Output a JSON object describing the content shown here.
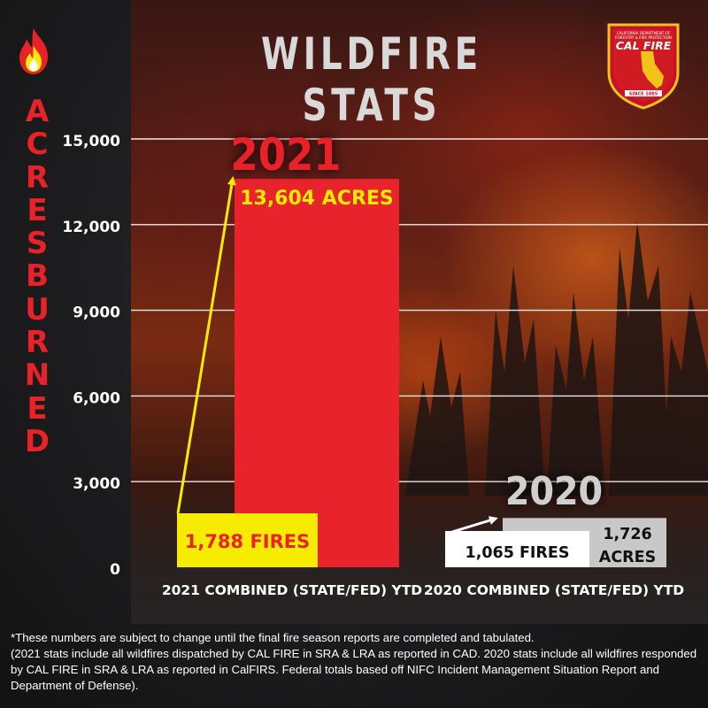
{
  "header": {
    "title": "WILDFIRE STATS",
    "y_axis_title": "ACRES BURNED"
  },
  "logo": {
    "line1": "CALIFORNIA DEPARTMENT OF",
    "line2": "FORESTRY & FIRE PROTECTION",
    "name": "CAL FIRE",
    "since": "SINCE 1885"
  },
  "colors": {
    "bar_2021": "#e9232b",
    "bar_2020": "#c8c8c8",
    "fires_box_2021": "#f6ec00",
    "fires_text_2021": "#e9232b",
    "acres_text_2021": "#f6ec00",
    "fires_box_2020": "#ffffff",
    "year_2021": "#e9232b",
    "year_2020": "#cfcfcf",
    "arrow_2021": "#f6ec00",
    "arrow_2020": "#ffffff"
  },
  "chart_data": {
    "type": "bar",
    "categories": [
      "2021 COMBINED (STATE/FED) YTD",
      "2020 COMBINED (STATE/FED) YTD"
    ],
    "values": [
      13604,
      1726
    ],
    "fires": [
      1788,
      1065
    ],
    "year_labels": [
      "2021",
      "2020"
    ],
    "acres_labels": [
      "13,604 ACRES",
      "1,726\nACRES"
    ],
    "fires_labels": [
      "1,788 FIRES",
      "1,065 FIRES"
    ],
    "ylabel": "ACRES BURNED",
    "ylim": [
      0,
      15000
    ],
    "yticks": [
      0,
      3000,
      6000,
      9000,
      12000,
      15000
    ],
    "ytick_labels": [
      "0",
      "3,000",
      "6,000",
      "9,000",
      "12,000",
      "15,000"
    ],
    "grid": true
  },
  "footnotes": [
    "*These numbers are subject to change until the final fire season reports are completed and tabulated.",
    "(2021 stats include all wildfires dispatched by CAL FIRE in SRA & LRA as reported in CAD. 2020 stats include all wildfires responded by CAL FIRE in SRA & LRA as reported in CalFIRS. Federal totals based off NIFC Incident Management Situation Report and Department of Defense)."
  ]
}
